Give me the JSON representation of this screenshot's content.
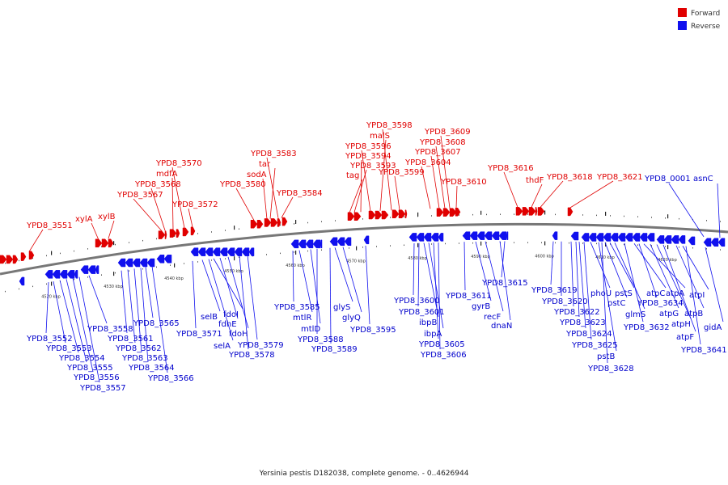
{
  "caption": "Yersinia pestis D182038, complete genome. - 0..4626944",
  "legend": {
    "forward": "Forward",
    "reverse": "Reverse"
  },
  "colors": {
    "forward": "#e00000",
    "reverse": "#1010ee",
    "backbone": "#777777"
  },
  "tick_labels": [
    "4520 kbp",
    "4530 kbp",
    "4540 kbp",
    "4550 kbp",
    "4560 kbp",
    "4570 kbp",
    "4580 kbp",
    "4590 kbp",
    "4600 kbp",
    "4610 kbp",
    "4620 kbp"
  ],
  "forward_genes": [
    "YPD8_3551",
    "xylA",
    "xylB",
    "YPD8_3567",
    "YPD8_3568",
    "mdfA",
    "YPD8_3570",
    "YPD8_3572",
    "YPD8_3580",
    "sodA",
    "tar",
    "YPD8_3583",
    "YPD8_3584",
    "tag",
    "YPD8_3593",
    "YPD8_3594",
    "YPD8_3596",
    "malS",
    "YPD8_3598",
    "YPD8_3599",
    "YPD8_3604",
    "YPD8_3607",
    "YPD8_3608",
    "YPD8_3609",
    "YPD8_3610",
    "YPD8_3616",
    "thdF",
    "YPD8_3618",
    "YPD8_3621"
  ],
  "reverse_genes": [
    "YPD8_3552",
    "YPD8_3553",
    "YPD8_3554",
    "YPD8_3555",
    "YPD8_3556",
    "YPD8_3557",
    "YPD8_3558",
    "YPD8_3561",
    "YPD8_3562",
    "YPD8_3563",
    "YPD8_3564",
    "YPD8_3565",
    "YPD8_3566",
    "YPD8_3571",
    "selB",
    "selA",
    "fdoI",
    "fdhE",
    "fdoH",
    "YPD8_3578",
    "YPD8_3579",
    "YPD8_3585",
    "mtlR",
    "mtlD",
    "YPD8_3588",
    "YPD8_3589",
    "glyS",
    "glyQ",
    "YPD8_3595",
    "YPD8_3600",
    "YPD8_3601",
    "ibpB",
    "ibpA",
    "YPD8_3605",
    "YPD8_3606",
    "YPD8_3611",
    "gyrB",
    "recF",
    "dnaN",
    "YPD8_3615",
    "YPD8_3619",
    "YPD8_3620",
    "YPD8_3622",
    "YPD8_3623",
    "YPD8_3624",
    "YPD8_3625",
    "phoU",
    "pstB",
    "YPD8_3628",
    "pstC",
    "pstS",
    "glmS",
    "YPD8_3632",
    "atpC",
    "YPD8_3634",
    "atpA",
    "atpG",
    "atpH",
    "atpF",
    "atpB",
    "atpI",
    "YPD8_3641",
    "gidA",
    "YPD8_0001",
    "asnC"
  ]
}
